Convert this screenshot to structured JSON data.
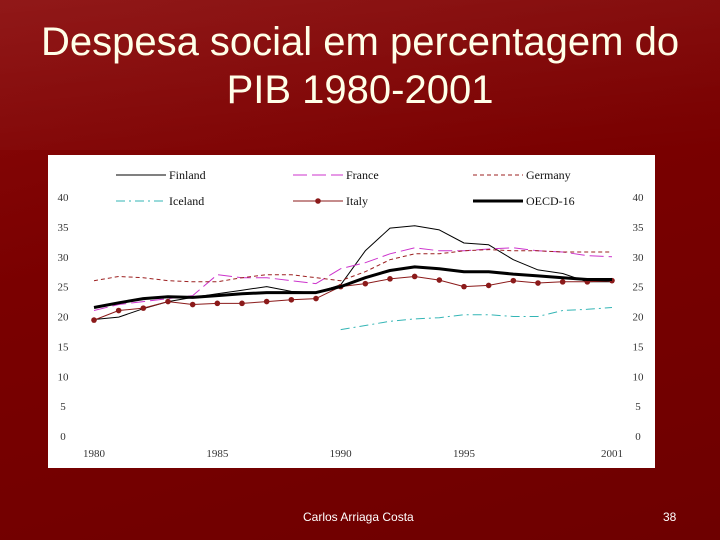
{
  "slide": {
    "title_line1": "Despesa social em percentagem do",
    "title_line2": "PIB 1980-2001",
    "footer_author": "Carlos Arriaga Costa",
    "page_number": "38"
  },
  "colors": {
    "background": "#7a0000",
    "title": "#ffffe8"
  },
  "chart_data": {
    "type": "line",
    "x_ticks": [
      "1980",
      "1985",
      "1990",
      "1995",
      "2001"
    ],
    "y_ticks": [
      "0",
      "5",
      "10",
      "15",
      "20",
      "25",
      "30",
      "35",
      "40"
    ],
    "xlim": [
      1980,
      2001
    ],
    "ylim": [
      0,
      40
    ],
    "grid": false,
    "legend_position": "top",
    "series": [
      {
        "name": "Finland",
        "color": "#000000",
        "style": "solid",
        "width": 1,
        "x": [
          1980,
          1981,
          1982,
          1983,
          1984,
          1985,
          1986,
          1987,
          1988,
          1989,
          1990,
          1991,
          1992,
          1993,
          1994,
          1995,
          1996,
          1997,
          1998,
          1999,
          2000,
          2001
        ],
        "y": [
          19.5,
          19.9,
          21.3,
          22.5,
          23.2,
          23.8,
          24.4,
          25.0,
          24.2,
          24.0,
          25.3,
          31.0,
          34.8,
          35.2,
          34.5,
          32.3,
          32.0,
          29.5,
          27.8,
          27.2,
          25.8,
          25.8
        ]
      },
      {
        "name": "France",
        "color": "#cc33cc",
        "style": "longdash",
        "width": 1,
        "x": [
          1980,
          1981,
          1982,
          1983,
          1984,
          1985,
          1986,
          1987,
          1988,
          1989,
          1990,
          1991,
          1992,
          1993,
          1994,
          1995,
          1996,
          1997,
          1998,
          1999,
          2000,
          2001
        ],
        "y": [
          21.0,
          22.0,
          22.5,
          23.0,
          23.5,
          27.0,
          26.5,
          26.5,
          26.0,
          25.5,
          28.0,
          29.0,
          30.5,
          31.5,
          31.0,
          31.0,
          31.3,
          31.5,
          31.0,
          30.8,
          30.2,
          30.0
        ]
      },
      {
        "name": "Germany",
        "color": "#9c2020",
        "style": "dash",
        "width": 1,
        "x": [
          1980,
          1981,
          1982,
          1983,
          1984,
          1985,
          1986,
          1987,
          1988,
          1989,
          1990,
          1991,
          1992,
          1993,
          1994,
          1995,
          1996,
          1997,
          1998,
          1999,
          2000,
          2001
        ],
        "y": [
          26.0,
          26.7,
          26.5,
          26.0,
          25.8,
          25.8,
          26.5,
          27.0,
          27.0,
          26.5,
          26.0,
          27.5,
          29.5,
          30.5,
          30.5,
          31.0,
          31.2,
          31.0,
          31.0,
          30.8,
          30.8,
          30.8
        ]
      },
      {
        "name": "Iceland",
        "color": "#33b5b5",
        "style": "dashdot",
        "width": 1,
        "x": [
          1990,
          1991,
          1992,
          1993,
          1994,
          1995,
          1996,
          1997,
          1998,
          1999,
          2000,
          2001
        ],
        "y": [
          17.8,
          18.5,
          19.2,
          19.6,
          19.8,
          20.3,
          20.3,
          20.0,
          20.0,
          21.0,
          21.2,
          21.5
        ]
      },
      {
        "name": "Italy",
        "color": "#8b1a1a",
        "style": "solid",
        "width": 1,
        "markers": true,
        "x": [
          1980,
          1981,
          1982,
          1983,
          1984,
          1985,
          1986,
          1987,
          1988,
          1989,
          1990,
          1991,
          1992,
          1993,
          1994,
          1995,
          1996,
          1997,
          1998,
          1999,
          2000,
          2001
        ],
        "y": [
          19.4,
          21.0,
          21.4,
          22.5,
          22.0,
          22.2,
          22.2,
          22.5,
          22.8,
          23.0,
          25.0,
          25.5,
          26.3,
          26.7,
          26.1,
          25.0,
          25.2,
          26.0,
          25.6,
          25.8,
          25.8,
          26.0
        ]
      },
      {
        "name": "OECD-16",
        "color": "#000000",
        "style": "solid",
        "width": 3,
        "x": [
          1980,
          1981,
          1982,
          1983,
          1984,
          1985,
          1986,
          1987,
          1988,
          1989,
          1990,
          1991,
          1992,
          1993,
          1994,
          1995,
          1996,
          1997,
          1998,
          1999,
          2000,
          2001
        ],
        "y": [
          21.5,
          22.3,
          23.0,
          23.3,
          23.2,
          23.5,
          23.8,
          24.0,
          24.0,
          24.0,
          25.0,
          26.5,
          27.7,
          28.3,
          28.0,
          27.5,
          27.5,
          27.1,
          26.8,
          26.5,
          26.2,
          26.2
        ]
      }
    ]
  }
}
